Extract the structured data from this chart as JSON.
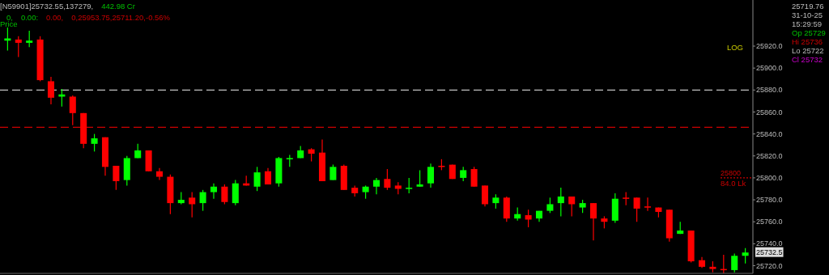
{
  "chart_data": {
    "type": "candlestick",
    "categories": [
      null,
      null,
      null,
      null,
      null,
      null,
      null,
      null,
      null,
      null,
      null,
      null,
      null,
      null,
      null,
      null,
      null,
      null,
      null,
      null,
      null,
      null,
      null,
      null,
      null,
      null,
      null,
      null,
      null,
      null,
      null,
      null,
      null,
      null,
      null,
      null,
      null,
      null,
      null,
      null,
      null,
      null,
      null,
      null,
      null,
      null,
      null,
      null,
      null,
      null,
      null,
      null,
      null,
      null,
      null,
      null,
      null,
      null,
      null,
      null,
      null,
      null,
      null,
      null,
      null,
      null,
      null,
      null,
      null
    ],
    "ohlc": [
      [
        25925,
        25937,
        25916,
        25927
      ],
      [
        25926,
        25929,
        25910,
        25923
      ],
      [
        25923,
        25934,
        25919,
        25925
      ],
      [
        25926,
        25929,
        25888,
        25889
      ],
      [
        25888,
        25892,
        25867,
        25873
      ],
      [
        25874,
        25881,
        25865,
        25876
      ],
      [
        25874,
        25875,
        25848,
        25859
      ],
      [
        25859,
        25859,
        25827,
        25831
      ],
      [
        25831,
        25840,
        25824,
        25836
      ],
      [
        25837,
        25837,
        25802,
        25810
      ],
      [
        25811,
        25811,
        25789,
        25797
      ],
      [
        25798,
        25820,
        25793,
        25818
      ],
      [
        25818,
        25831,
        25818,
        25825
      ],
      [
        25825,
        25825,
        25806,
        25806
      ],
      [
        25806,
        25809,
        25798,
        25801
      ],
      [
        25801,
        25803,
        25767,
        25777
      ],
      [
        25777,
        25787,
        25776,
        25780
      ],
      [
        25782,
        25787,
        25764,
        25776
      ],
      [
        25777,
        25789,
        25770,
        25787
      ],
      [
        25787,
        25795,
        25781,
        25792
      ],
      [
        25792,
        25794,
        25776,
        25778
      ],
      [
        25777,
        25798,
        25775,
        25795
      ],
      [
        25795,
        25802,
        25793,
        25793
      ],
      [
        25792,
        25810,
        25788,
        25805
      ],
      [
        25806,
        25809,
        25794,
        25794
      ],
      [
        25795,
        25819,
        25792,
        25818
      ],
      [
        25817,
        25821,
        25810,
        25818
      ],
      [
        25818,
        25829,
        25818,
        25825
      ],
      [
        25826,
        25827,
        25815,
        25822
      ],
      [
        25823,
        25835,
        25797,
        25797
      ],
      [
        25798,
        25812,
        25798,
        25810
      ],
      [
        25811,
        25812,
        25789,
        25789
      ],
      [
        25791,
        25793,
        25783,
        25786
      ],
      [
        25787,
        25793,
        25781,
        25792
      ],
      [
        25792,
        25800,
        25785,
        25798
      ],
      [
        25799,
        25808,
        25789,
        25791
      ],
      [
        25793,
        25796,
        25785,
        25790
      ],
      [
        25790,
        25800,
        25786,
        25791
      ],
      [
        25792,
        25807,
        25792,
        25794
      ],
      [
        25795,
        25813,
        25791,
        25810
      ],
      [
        25811,
        25817,
        25807,
        25810
      ],
      [
        25812,
        25812,
        25799,
        25799
      ],
      [
        25800,
        25810,
        25797,
        25807
      ],
      [
        25808,
        25810,
        25792,
        25792
      ],
      [
        25793,
        25793,
        25774,
        25776
      ],
      [
        25777,
        25785,
        25772,
        25782
      ],
      [
        25782,
        25783,
        25760,
        25763
      ],
      [
        25763,
        25773,
        25761,
        25767
      ],
      [
        25766,
        25771,
        25755,
        25762
      ],
      [
        25763,
        25770,
        25760,
        25770
      ],
      [
        25770,
        25782,
        25768,
        25776
      ],
      [
        25777,
        25791,
        25765,
        25783
      ],
      [
        25783,
        25783,
        25765,
        25776
      ],
      [
        25773,
        25780,
        25768,
        25777
      ],
      [
        25777,
        25777,
        25743,
        25763
      ],
      [
        25763,
        25765,
        25754,
        25760
      ],
      [
        25761,
        25786,
        25759,
        25781
      ],
      [
        25782,
        25787,
        25775,
        25781
      ],
      [
        25782,
        25782,
        25760,
        25772
      ],
      [
        25774,
        25782,
        25770,
        25773
      ],
      [
        25773,
        25773,
        25764,
        25769
      ],
      [
        25771,
        25771,
        25742,
        25745
      ],
      [
        25749,
        25760,
        25749,
        25752
      ],
      [
        25752,
        25752,
        25723,
        25724
      ],
      [
        25725,
        25728,
        25718,
        25719
      ],
      [
        25719,
        25724,
        25714,
        25717
      ],
      [
        25717,
        25730,
        25713,
        25716
      ],
      [
        25716,
        25731,
        25714,
        25729
      ],
      [
        25729,
        25736,
        25722,
        25732
      ]
    ],
    "colors": [
      "#00ff00",
      "#ff0000",
      "#00ff00",
      "#ff0000",
      "#ff0000",
      "#00ff00",
      "#ff0000",
      "#ff0000",
      "#00ff00",
      "#ff0000",
      "#ff0000",
      "#00ff00",
      "#00ff00",
      "#ff0000",
      "#ff0000",
      "#ff0000",
      "#00ff00",
      "#ff0000",
      "#00ff00",
      "#00ff00",
      "#ff0000",
      "#00ff00",
      "#ff0000",
      "#00ff00",
      "#ff0000",
      "#00ff00",
      "#00ff00",
      "#00ff00",
      "#ff0000",
      "#ff0000",
      "#00ff00",
      "#ff0000",
      "#ff0000",
      "#00ff00",
      "#00ff00",
      "#ff0000",
      "#ff0000",
      "#00ff00",
      "#00ff00",
      "#00ff00",
      "#ff0000",
      "#ff0000",
      "#00ff00",
      "#ff0000",
      "#ff0000",
      "#00ff00",
      "#ff0000",
      "#00ff00",
      "#ff0000",
      "#00ff00",
      "#00ff00",
      "#00ff00",
      "#ff0000",
      "#00ff00",
      "#ff0000",
      "#ff0000",
      "#00ff00",
      "#ff0000",
      "#ff0000",
      "#ff0000",
      "#ff0000",
      "#ff0000",
      "#00ff00",
      "#ff0000",
      "#ff0000",
      "#ff0000",
      "#ff0000",
      "#00ff00",
      "#00ff00"
    ],
    "ylim": [
      25713,
      25962
    ],
    "yticks": [
      {
        "value": 25720,
        "label": "25720.0"
      },
      {
        "value": 25740,
        "label": "25740.0"
      },
      {
        "value": 25760,
        "label": "25760.0"
      },
      {
        "value": 25780,
        "label": "25780.0"
      },
      {
        "value": 25800,
        "label": "25800.0"
      },
      {
        "value": 25820,
        "label": "25820.0"
      },
      {
        "value": 25840,
        "label": "25840.0"
      },
      {
        "value": 25860,
        "label": "25860.0"
      },
      {
        "value": 25880,
        "label": "25880.0"
      },
      {
        "value": 25900,
        "label": "25900.0"
      },
      {
        "value": 25920,
        "label": "25920.0"
      }
    ],
    "ref_lines": [
      {
        "axis": "y",
        "value": 25880,
        "color": "#c0c0c0",
        "line_style": "dashed"
      },
      {
        "axis": "y",
        "value": 25846,
        "color": "#cc0000",
        "line_style": "dashed"
      },
      {
        "axis": "y",
        "value": 25800,
        "label": "25800",
        "color": "#cc0000",
        "line_style": "dotted"
      }
    ],
    "annotations": [
      "[N59901]25732.55,137279,",
      "442.98 Cr",
      "0,",
      "0.00:",
      "0.00,",
      "0,25953.75,25711.20,",
      "-0.56%",
      "Price",
      "LOG",
      "25719.76",
      "31-10-25",
      "15:29:59",
      "Op 25729",
      "Hi 25736",
      "Lo 25722",
      "Cl 25732",
      "84.0 Lk",
      {
        "text": "25732.5",
        "y": 25732.5
      }
    ],
    "grid": false
  }
}
